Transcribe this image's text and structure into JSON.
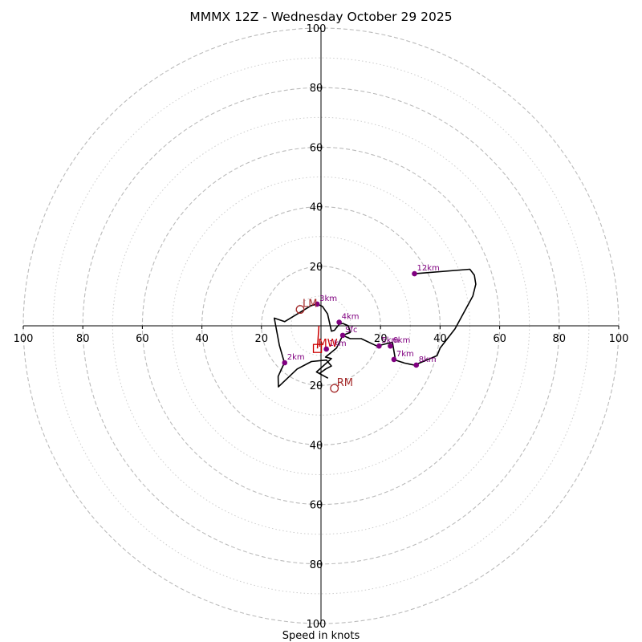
{
  "chart_data": {
    "type": "hodograph",
    "title": "MMMX 12Z - Wednesday October 29 2025",
    "xlabel": "Speed in knots",
    "range": [
      -100,
      100
    ],
    "rings_major": [
      20,
      40,
      60,
      80,
      100
    ],
    "rings_minor": [
      10,
      30,
      50,
      70,
      90
    ],
    "ticks": [
      {
        "v": -100,
        "label": "100"
      },
      {
        "v": -80,
        "label": "80"
      },
      {
        "v": -60,
        "label": "60"
      },
      {
        "v": -40,
        "label": "40"
      },
      {
        "v": -20,
        "label": "20"
      },
      {
        "v": 20,
        "label": "20"
      },
      {
        "v": 40,
        "label": "40"
      },
      {
        "v": 60,
        "label": "60"
      },
      {
        "v": 80,
        "label": "80"
      },
      {
        "v": 100,
        "label": "100"
      }
    ],
    "trace": [
      [
        7.3,
        -3.2
      ],
      [
        9.8,
        -2.2
      ],
      [
        9.2,
        0.0
      ],
      [
        7.3,
        0.8
      ],
      [
        6.1,
        0.5
      ],
      [
        4.5,
        -1.5
      ],
      [
        3.5,
        -1.8
      ],
      [
        2.2,
        4.0
      ],
      [
        0.5,
        6.5
      ],
      [
        -1.3,
        7.3
      ],
      [
        -3.3,
        6.8
      ],
      [
        -12.2,
        1.4
      ],
      [
        -15.7,
        2.6
      ],
      [
        -14.0,
        -6.5
      ],
      [
        -12.3,
        -12.4
      ],
      [
        -14.4,
        -17.0
      ],
      [
        -14.3,
        -20.5
      ],
      [
        -8.0,
        -14.5
      ],
      [
        -3.2,
        -12.0
      ],
      [
        1.8,
        -11.5
      ],
      [
        3.5,
        -13.5
      ],
      [
        1.6,
        -14.5
      ],
      [
        -0.5,
        -16.0
      ],
      [
        2.2,
        -17.5
      ],
      [
        -1.5,
        -15.5
      ],
      [
        3.5,
        -11.0
      ],
      [
        1.5,
        -10.5
      ],
      [
        5.2,
        -7.5
      ],
      [
        7.3,
        -3.2
      ],
      [
        9.8,
        -4.3
      ],
      [
        13.5,
        -4.3
      ],
      [
        18.8,
        -6.8
      ],
      [
        24.0,
        -5.5
      ],
      [
        25.0,
        -11.5
      ],
      [
        28.0,
        -12.5
      ],
      [
        31.4,
        -13.2
      ],
      [
        39.0,
        -10.0
      ],
      [
        40.0,
        -7.5
      ],
      [
        45.0,
        -1.0
      ],
      [
        51.0,
        10.0
      ],
      [
        52.0,
        14.0
      ],
      [
        51.5,
        17.0
      ],
      [
        50.0,
        19.0
      ],
      [
        31.4,
        17.5
      ]
    ],
    "height_markers": [
      {
        "label": "Sfc",
        "u": 7.3,
        "v": -3.2
      },
      {
        "label": "1km",
        "u": 1.8,
        "v": -7.8
      },
      {
        "label": "2km",
        "u": -12.2,
        "v": -12.4
      },
      {
        "label": "3km",
        "u": -1.3,
        "v": 7.3
      },
      {
        "label": "4km",
        "u": 6.1,
        "v": 1.2
      },
      {
        "label": "5km",
        "u": 19.5,
        "v": -6.8
      },
      {
        "label": "6km",
        "u": 23.3,
        "v": -6.8
      },
      {
        "label": "7km",
        "u": 24.5,
        "v": -11.3
      },
      {
        "label": "8km",
        "u": 32.0,
        "v": -13.2
      },
      {
        "label": "12km",
        "u": 31.4,
        "v": 17.5
      }
    ],
    "storm_motion": {
      "lm": {
        "label": "LM",
        "u": -7.0,
        "v": 5.5
      },
      "rm": {
        "label": "RM",
        "u": 4.5,
        "v": -21.0
      },
      "mw": {
        "label": "MW",
        "u": -1.2,
        "v": -7.6
      }
    },
    "colors": {
      "trace": "#000000",
      "markers": "#800080",
      "storm": "#a52a2a",
      "mean_wind": "#cc0000",
      "grid": "#bbbbbb"
    }
  }
}
